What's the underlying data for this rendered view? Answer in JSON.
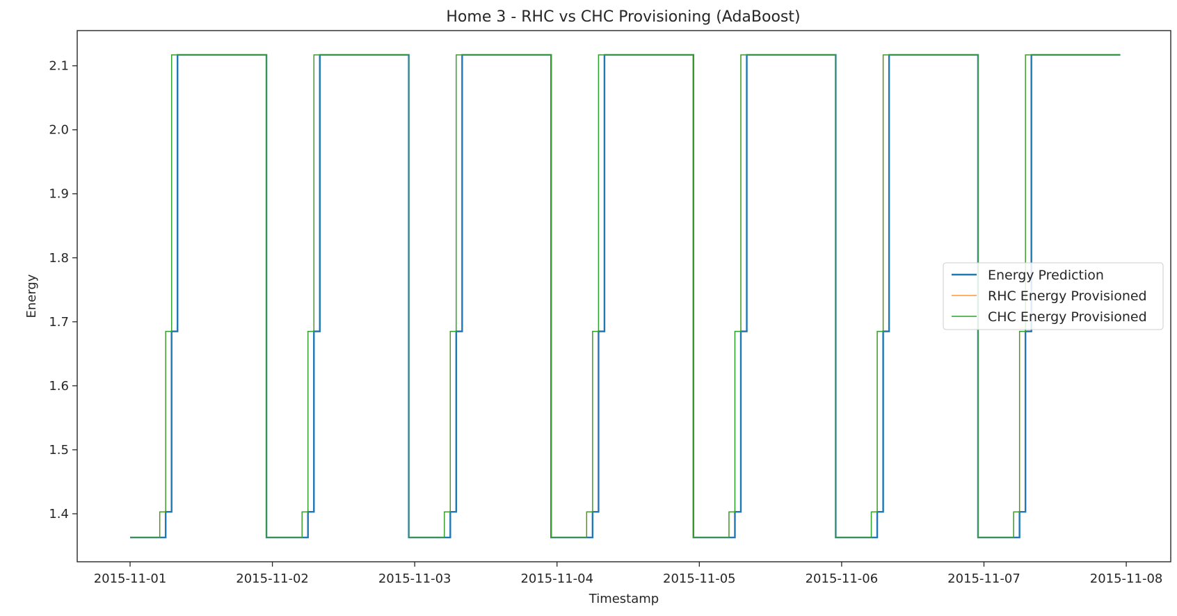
{
  "chart_data": {
    "type": "line",
    "title": "Home 3 - RHC vs CHC Provisioning (AdaBoost)",
    "xlabel": "Timestamp",
    "ylabel": "Energy",
    "xlim": [
      "2015-10-31T15:05",
      "2015-11-08T07:30"
    ],
    "ylim": [
      1.325,
      2.155
    ],
    "x_ticks": [
      "2015-11-01",
      "2015-11-02",
      "2015-11-03",
      "2015-11-04",
      "2015-11-05",
      "2015-11-06",
      "2015-11-07",
      "2015-11-08"
    ],
    "y_ticks": [
      "1.4",
      "1.5",
      "1.6",
      "1.7",
      "1.8",
      "1.9",
      "2.0",
      "2.1"
    ],
    "grid": false,
    "legend_position": "center-right",
    "series": [
      {
        "name": "Energy Prediction",
        "color": "#1f77b4",
        "points": [
          [
            "2015-11-01 00:00",
            1.363
          ],
          [
            "2015-11-01 06:00",
            1.363
          ],
          [
            "2015-11-01 06:00",
            1.403
          ],
          [
            "2015-11-01 07:00",
            1.403
          ],
          [
            "2015-11-01 07:00",
            1.685
          ],
          [
            "2015-11-01 08:00",
            1.685
          ],
          [
            "2015-11-01 08:00",
            2.117
          ],
          [
            "2015-11-01 23:00",
            2.117
          ],
          [
            "2015-11-01 23:00",
            1.363
          ],
          [
            "2015-11-02 06:00",
            1.363
          ],
          [
            "2015-11-02 06:00",
            1.403
          ],
          [
            "2015-11-02 07:00",
            1.403
          ],
          [
            "2015-11-02 07:00",
            1.685
          ],
          [
            "2015-11-02 08:00",
            1.685
          ],
          [
            "2015-11-02 08:00",
            2.117
          ],
          [
            "2015-11-02 23:00",
            2.117
          ],
          [
            "2015-11-02 23:00",
            1.363
          ],
          [
            "2015-11-03 06:00",
            1.363
          ],
          [
            "2015-11-03 06:00",
            1.403
          ],
          [
            "2015-11-03 07:00",
            1.403
          ],
          [
            "2015-11-03 07:00",
            1.685
          ],
          [
            "2015-11-03 08:00",
            1.685
          ],
          [
            "2015-11-03 08:00",
            2.117
          ],
          [
            "2015-11-03 23:00",
            2.117
          ],
          [
            "2015-11-03 23:00",
            1.363
          ],
          [
            "2015-11-04 06:00",
            1.363
          ],
          [
            "2015-11-04 06:00",
            1.403
          ],
          [
            "2015-11-04 07:00",
            1.403
          ],
          [
            "2015-11-04 07:00",
            1.685
          ],
          [
            "2015-11-04 08:00",
            1.685
          ],
          [
            "2015-11-04 08:00",
            2.117
          ],
          [
            "2015-11-04 23:00",
            2.117
          ],
          [
            "2015-11-04 23:00",
            1.363
          ],
          [
            "2015-11-05 06:00",
            1.363
          ],
          [
            "2015-11-05 06:00",
            1.403
          ],
          [
            "2015-11-05 07:00",
            1.403
          ],
          [
            "2015-11-05 07:00",
            1.685
          ],
          [
            "2015-11-05 08:00",
            1.685
          ],
          [
            "2015-11-05 08:00",
            2.117
          ],
          [
            "2015-11-05 23:00",
            2.117
          ],
          [
            "2015-11-05 23:00",
            1.363
          ],
          [
            "2015-11-06 06:00",
            1.363
          ],
          [
            "2015-11-06 06:00",
            1.403
          ],
          [
            "2015-11-06 07:00",
            1.403
          ],
          [
            "2015-11-06 07:00",
            1.685
          ],
          [
            "2015-11-06 08:00",
            1.685
          ],
          [
            "2015-11-06 08:00",
            2.117
          ],
          [
            "2015-11-06 23:00",
            2.117
          ],
          [
            "2015-11-06 23:00",
            1.363
          ],
          [
            "2015-11-07 06:00",
            1.363
          ],
          [
            "2015-11-07 06:00",
            1.403
          ],
          [
            "2015-11-07 07:00",
            1.403
          ],
          [
            "2015-11-07 07:00",
            1.685
          ],
          [
            "2015-11-07 08:00",
            1.685
          ],
          [
            "2015-11-07 08:00",
            2.117
          ],
          [
            "2015-11-07 23:00",
            2.117
          ]
        ]
      },
      {
        "name": "RHC Energy Provisioned",
        "color": "#ff7f0e",
        "points": [
          [
            "2015-11-01 00:00",
            1.363
          ],
          [
            "2015-11-01 05:00",
            1.363
          ],
          [
            "2015-11-01 05:00",
            1.403
          ],
          [
            "2015-11-01 06:00",
            1.403
          ],
          [
            "2015-11-01 06:00",
            1.685
          ],
          [
            "2015-11-01 07:00",
            1.685
          ],
          [
            "2015-11-01 07:00",
            2.117
          ],
          [
            "2015-11-01 23:00",
            2.117
          ],
          [
            "2015-11-01 23:00",
            1.363
          ],
          [
            "2015-11-02 05:00",
            1.363
          ],
          [
            "2015-11-02 05:00",
            1.403
          ],
          [
            "2015-11-02 06:00",
            1.403
          ],
          [
            "2015-11-02 06:00",
            1.685
          ],
          [
            "2015-11-02 07:00",
            1.685
          ],
          [
            "2015-11-02 07:00",
            2.117
          ],
          [
            "2015-11-02 23:00",
            2.117
          ],
          [
            "2015-11-02 23:00",
            1.363
          ],
          [
            "2015-11-03 05:00",
            1.363
          ],
          [
            "2015-11-03 05:00",
            1.403
          ],
          [
            "2015-11-03 06:00",
            1.403
          ],
          [
            "2015-11-03 06:00",
            1.685
          ],
          [
            "2015-11-03 07:00",
            1.685
          ],
          [
            "2015-11-03 07:00",
            2.117
          ],
          [
            "2015-11-03 23:00",
            2.117
          ],
          [
            "2015-11-03 23:00",
            1.363
          ],
          [
            "2015-11-04 05:00",
            1.363
          ],
          [
            "2015-11-04 05:00",
            1.403
          ],
          [
            "2015-11-04 06:00",
            1.403
          ],
          [
            "2015-11-04 06:00",
            1.685
          ],
          [
            "2015-11-04 07:00",
            1.685
          ],
          [
            "2015-11-04 07:00",
            2.117
          ],
          [
            "2015-11-04 23:00",
            2.117
          ],
          [
            "2015-11-04 23:00",
            1.363
          ],
          [
            "2015-11-05 05:00",
            1.363
          ],
          [
            "2015-11-05 05:00",
            1.403
          ],
          [
            "2015-11-05 06:00",
            1.403
          ],
          [
            "2015-11-05 06:00",
            1.685
          ],
          [
            "2015-11-05 07:00",
            1.685
          ],
          [
            "2015-11-05 07:00",
            2.117
          ],
          [
            "2015-11-05 23:00",
            2.117
          ],
          [
            "2015-11-05 23:00",
            1.363
          ],
          [
            "2015-11-06 05:00",
            1.363
          ],
          [
            "2015-11-06 05:00",
            1.403
          ],
          [
            "2015-11-06 06:00",
            1.403
          ],
          [
            "2015-11-06 06:00",
            1.685
          ],
          [
            "2015-11-06 07:00",
            1.685
          ],
          [
            "2015-11-06 07:00",
            2.117
          ],
          [
            "2015-11-06 23:00",
            2.117
          ],
          [
            "2015-11-06 23:00",
            1.363
          ],
          [
            "2015-11-07 05:00",
            1.363
          ],
          [
            "2015-11-07 05:00",
            1.403
          ],
          [
            "2015-11-07 06:00",
            1.403
          ],
          [
            "2015-11-07 06:00",
            1.685
          ],
          [
            "2015-11-07 07:00",
            1.685
          ],
          [
            "2015-11-07 07:00",
            2.117
          ],
          [
            "2015-11-07 23:00",
            2.117
          ]
        ]
      },
      {
        "name": "CHC Energy Provisioned",
        "color": "#2ca02c",
        "points": [
          [
            "2015-11-01 00:00",
            1.363
          ],
          [
            "2015-11-01 05:00",
            1.363
          ],
          [
            "2015-11-01 05:00",
            1.403
          ],
          [
            "2015-11-01 06:00",
            1.403
          ],
          [
            "2015-11-01 06:00",
            1.685
          ],
          [
            "2015-11-01 07:00",
            1.685
          ],
          [
            "2015-11-01 07:00",
            2.117
          ],
          [
            "2015-11-01 23:00",
            2.117
          ],
          [
            "2015-11-01 23:00",
            1.363
          ],
          [
            "2015-11-02 05:00",
            1.363
          ],
          [
            "2015-11-02 05:00",
            1.403
          ],
          [
            "2015-11-02 06:00",
            1.403
          ],
          [
            "2015-11-02 06:00",
            1.685
          ],
          [
            "2015-11-02 07:00",
            1.685
          ],
          [
            "2015-11-02 07:00",
            2.117
          ],
          [
            "2015-11-02 23:00",
            2.117
          ],
          [
            "2015-11-02 23:00",
            1.363
          ],
          [
            "2015-11-03 05:00",
            1.363
          ],
          [
            "2015-11-03 05:00",
            1.403
          ],
          [
            "2015-11-03 06:00",
            1.403
          ],
          [
            "2015-11-03 06:00",
            1.685
          ],
          [
            "2015-11-03 07:00",
            1.685
          ],
          [
            "2015-11-03 07:00",
            2.117
          ],
          [
            "2015-11-03 23:00",
            2.117
          ],
          [
            "2015-11-03 23:00",
            1.363
          ],
          [
            "2015-11-04 05:00",
            1.363
          ],
          [
            "2015-11-04 05:00",
            1.403
          ],
          [
            "2015-11-04 06:00",
            1.403
          ],
          [
            "2015-11-04 06:00",
            1.685
          ],
          [
            "2015-11-04 07:00",
            1.685
          ],
          [
            "2015-11-04 07:00",
            2.117
          ],
          [
            "2015-11-04 23:00",
            2.117
          ],
          [
            "2015-11-04 23:00",
            1.363
          ],
          [
            "2015-11-05 05:00",
            1.363
          ],
          [
            "2015-11-05 05:00",
            1.403
          ],
          [
            "2015-11-05 06:00",
            1.403
          ],
          [
            "2015-11-05 06:00",
            1.685
          ],
          [
            "2015-11-05 07:00",
            1.685
          ],
          [
            "2015-11-05 07:00",
            2.117
          ],
          [
            "2015-11-05 23:00",
            2.117
          ],
          [
            "2015-11-05 23:00",
            1.363
          ],
          [
            "2015-11-06 05:00",
            1.363
          ],
          [
            "2015-11-06 05:00",
            1.403
          ],
          [
            "2015-11-06 06:00",
            1.403
          ],
          [
            "2015-11-06 06:00",
            1.685
          ],
          [
            "2015-11-06 07:00",
            1.685
          ],
          [
            "2015-11-06 07:00",
            2.117
          ],
          [
            "2015-11-06 23:00",
            2.117
          ],
          [
            "2015-11-06 23:00",
            1.363
          ],
          [
            "2015-11-07 05:00",
            1.363
          ],
          [
            "2015-11-07 05:00",
            1.403
          ],
          [
            "2015-11-07 06:00",
            1.403
          ],
          [
            "2015-11-07 06:00",
            1.685
          ],
          [
            "2015-11-07 07:00",
            1.685
          ],
          [
            "2015-11-07 07:00",
            2.117
          ],
          [
            "2015-11-07 23:00",
            2.117
          ]
        ]
      }
    ]
  }
}
